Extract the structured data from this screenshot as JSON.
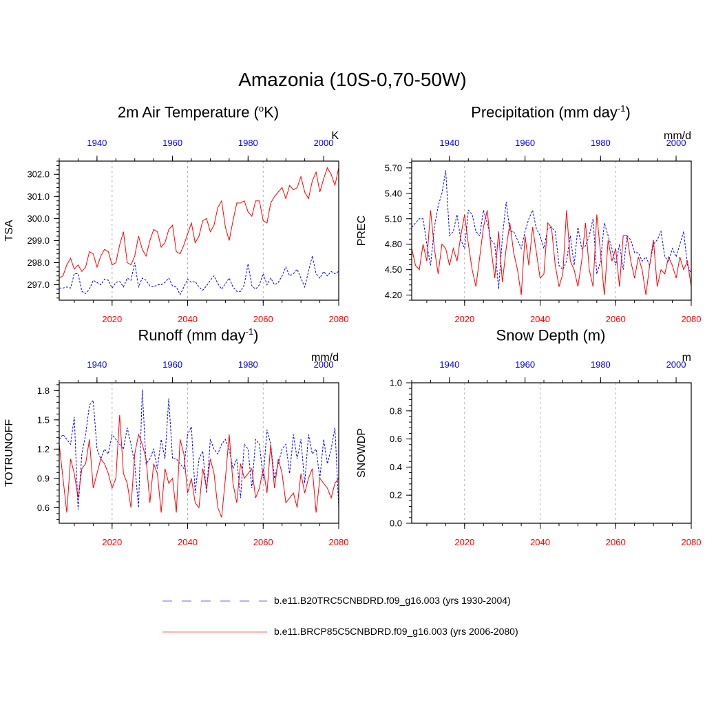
{
  "figure": {
    "title": "Amazonia (10S-0,70-50W)",
    "legend": [
      {
        "label": "b.e11.B20TRC5CNBDRD.f09_g16.003 (yrs 1930-2004)",
        "color": "#0000ff",
        "style": "dashed"
      },
      {
        "label": "b.e11.BRCP85C5CNBDRD.f09_g16.003 (yrs 2006-2080)",
        "color": "#ff0000",
        "style": "solid"
      }
    ],
    "colors": {
      "historical": "#0000ff",
      "future": "#ff0000",
      "grid": "#b0b0b0"
    }
  },
  "chart_data": [
    {
      "type": "line",
      "title_main": "2m Air Temperature (",
      "title_sup": "o",
      "title_tail": "K)",
      "ylabel": "TSA",
      "units": "K",
      "ylim": [
        296.3,
        302.6
      ],
      "yticks": [
        "297.0",
        "298.0",
        "299.0",
        "300.0",
        "301.0",
        "302.0"
      ],
      "bottom_axis": {
        "range": [
          2006,
          2080
        ],
        "ticks": [
          "2020",
          "2040",
          "2060",
          "2080"
        ]
      },
      "top_axis": {
        "range": [
          1930,
          2004
        ],
        "ticks": [
          "1940",
          "1960",
          "1980",
          "2000"
        ]
      },
      "series": [
        {
          "name": "b.e11.B20TRC5CNBDRD.f09_g16.003 (yrs 1930-2004)",
          "axis": "top",
          "start": 1930,
          "values": [
            296.85,
            296.85,
            296.9,
            296.85,
            297.5,
            297.5,
            296.7,
            296.6,
            296.8,
            297.2,
            297.1,
            297.0,
            297.25,
            297.2,
            296.85,
            297.1,
            297.15,
            296.9,
            297.3,
            297.2,
            298.0,
            296.9,
            297.3,
            297.2,
            296.95,
            296.9,
            297.0,
            297.0,
            297.1,
            297.3,
            296.95,
            296.9,
            296.55,
            296.9,
            297.25,
            297.1,
            297.15,
            296.9,
            296.75,
            296.95,
            297.2,
            297.4,
            297.05,
            296.8,
            297.05,
            297.3,
            296.9,
            296.7,
            296.7,
            297.0,
            297.95,
            296.95,
            296.8,
            297.0,
            297.5,
            297.0,
            297.3,
            297.0,
            297.1,
            297.4,
            297.8,
            297.4,
            297.5,
            297.7,
            297.3,
            296.9,
            297.6,
            298.3,
            297.5,
            297.3,
            297.6,
            297.4,
            297.6,
            297.5,
            297.6
          ]
        },
        {
          "name": "b.e11.BRCP85C5CNBDRD.f09_g16.003 (yrs 2006-2080)",
          "axis": "bottom",
          "start": 2006,
          "values": [
            297.3,
            297.4,
            297.9,
            298.2,
            297.7,
            297.9,
            297.6,
            297.8,
            298.5,
            298.4,
            297.8,
            298.3,
            298.6,
            298.5,
            297.9,
            298.0,
            298.8,
            299.4,
            298.0,
            297.9,
            298.3,
            299.2,
            298.6,
            298.3,
            299.0,
            299.5,
            299.4,
            298.7,
            298.9,
            299.5,
            299.7,
            298.5,
            298.4,
            298.8,
            299.3,
            299.8,
            298.9,
            299.2,
            299.9,
            300.0,
            299.4,
            299.7,
            300.5,
            300.8,
            299.6,
            299.0,
            299.9,
            300.7,
            300.7,
            300.8,
            300.3,
            300.1,
            300.8,
            300.8,
            299.9,
            299.8,
            300.7,
            301.0,
            301.2,
            301.4,
            300.9,
            301.5,
            301.3,
            301.4,
            301.9,
            301.2,
            300.9,
            301.7,
            302.1,
            301.2,
            301.8,
            302.3,
            302.0,
            301.5,
            302.3
          ]
        }
      ]
    },
    {
      "type": "line",
      "title_main": "Precipitation (mm day",
      "title_sup": "-1",
      "title_tail": ")",
      "ylabel": "PREC",
      "units": "mm/d",
      "ylim": [
        4.14,
        5.78
      ],
      "yticks": [
        "4.20",
        "4.50",
        "4.80",
        "5.10",
        "5.40",
        "5.70"
      ],
      "bottom_axis": {
        "range": [
          2006,
          2080
        ],
        "ticks": [
          "2020",
          "2040",
          "2060",
          "2080"
        ]
      },
      "top_axis": {
        "range": [
          1930,
          2004
        ],
        "ticks": [
          "1940",
          "1960",
          "1980",
          "2000"
        ]
      },
      "series": [
        {
          "name": "b.e11.B20TRC5CNBDRD.f09_g16.003 (yrs 1930-2004)",
          "axis": "top",
          "start": 1930,
          "values": [
            5.0,
            5.05,
            5.1,
            5.1,
            4.8,
            4.55,
            5.0,
            5.25,
            5.4,
            5.67,
            4.9,
            4.95,
            5.15,
            4.85,
            4.75,
            5.2,
            5.15,
            4.95,
            4.9,
            5.2,
            5.05,
            4.85,
            4.8,
            4.27,
            4.88,
            5.3,
            4.95,
            4.95,
            4.85,
            4.75,
            4.95,
            5.1,
            5.2,
            4.98,
            4.9,
            4.75,
            4.98,
            5.0,
            4.95,
            4.55,
            4.5,
            4.6,
            4.9,
            4.55,
            5.0,
            4.75,
            4.78,
            4.9,
            5.1,
            4.45,
            4.6,
            5.05,
            4.9,
            4.75,
            4.55,
            4.8,
            4.5,
            4.9,
            4.85,
            4.7,
            4.7,
            4.6,
            4.65,
            4.55,
            4.8,
            4.85,
            4.95,
            4.65,
            4.6,
            4.75,
            4.65,
            4.8,
            4.95,
            4.55,
            4.45
          ]
        },
        {
          "name": "b.e11.BRCP85C5CNBDRD.f09_g16.003 (yrs 2006-2080)",
          "axis": "bottom",
          "start": 2006,
          "values": [
            4.75,
            4.55,
            4.5,
            4.8,
            4.6,
            5.2,
            4.75,
            4.45,
            4.8,
            4.75,
            4.55,
            4.75,
            4.6,
            4.9,
            5.15,
            4.8,
            4.5,
            4.3,
            4.65,
            5.0,
            5.2,
            4.75,
            4.4,
            4.95,
            4.35,
            4.75,
            5.05,
            4.7,
            4.5,
            4.2,
            4.9,
            4.55,
            5.0,
            4.7,
            4.4,
            4.45,
            5.05,
            5.0,
            4.55,
            4.3,
            4.45,
            5.2,
            4.6,
            4.5,
            4.3,
            4.6,
            5.05,
            4.5,
            4.3,
            5.15,
            4.7,
            4.2,
            4.85,
            4.6,
            4.75,
            4.3,
            4.9,
            4.9,
            4.6,
            4.4,
            4.65,
            4.5,
            4.2,
            4.55,
            4.85,
            4.3,
            4.5,
            4.45,
            4.65,
            4.55,
            4.4,
            4.65,
            4.5,
            4.6,
            4.3
          ]
        }
      ]
    },
    {
      "type": "line",
      "title_main": "Runoff (mm day",
      "title_sup": "-1",
      "title_tail": ")",
      "ylabel": "TOTRUNOFF",
      "units": "mm/d",
      "ylim": [
        0.44,
        1.88
      ],
      "yticks": [
        "0.6",
        "0.9",
        "1.2",
        "1.5",
        "1.8"
      ],
      "bottom_axis": {
        "range": [
          2006,
          2080
        ],
        "ticks": [
          "2020",
          "2040",
          "2060",
          "2080"
        ]
      },
      "top_axis": {
        "range": [
          1930,
          2004
        ],
        "ticks": [
          "1940",
          "1960",
          "1980",
          "2000"
        ]
      },
      "series": [
        {
          "name": "b.e11.B20TRC5CNBDRD.f09_g16.003 (yrs 1930-2004)",
          "axis": "top",
          "start": 1930,
          "values": [
            1.3,
            1.35,
            1.3,
            1.25,
            1.53,
            0.58,
            1.15,
            1.35,
            1.65,
            1.7,
            1.2,
            1.1,
            1.2,
            1.15,
            1.35,
            1.3,
            1.25,
            1.2,
            1.42,
            1.25,
            1.05,
            0.6,
            1.81,
            1.05,
            1.1,
            1.2,
            1.0,
            1.3,
            1.1,
            1.72,
            1.1,
            1.1,
            1.05,
            1.0,
            1.35,
            1.43,
            0.75,
            1.1,
            1.18,
            0.75,
            1.3,
            1.2,
            1.15,
            1.25,
            1.3,
            1.2,
            1.0,
            1.1,
            0.7,
            1.25,
            1.2,
            0.8,
            1.3,
            1.25,
            0.9,
            1.4,
            1.25,
            0.9,
            1.05,
            1.2,
            1.25,
            0.95,
            1.35,
            1.1,
            1.3,
            0.85,
            1.35,
            1.15,
            1.2,
            0.9,
            1.3,
            1.05,
            1.2,
            1.42,
            0.6
          ]
        },
        {
          "name": "b.e11.BRCP85C5CNBDRD.f09_g16.003 (yrs 2006-2080)",
          "axis": "bottom",
          "start": 2006,
          "values": [
            1.25,
            0.9,
            0.55,
            1.1,
            0.95,
            0.7,
            1.0,
            1.05,
            1.3,
            0.8,
            0.95,
            1.1,
            1.05,
            0.95,
            0.8,
            0.9,
            1.55,
            0.95,
            0.85,
            0.6,
            1.15,
            1.35,
            1.25,
            1.1,
            0.65,
            1.05,
            0.95,
            0.55,
            1.0,
            0.85,
            0.9,
            0.55,
            1.3,
            1.15,
            0.75,
            0.9,
            0.65,
            0.6,
            1.0,
            0.8,
            1.1,
            0.95,
            0.6,
            0.5,
            0.9,
            1.35,
            0.85,
            0.65,
            1.05,
            0.9,
            0.95,
            1.0,
            0.7,
            0.8,
            1.0,
            0.75,
            1.25,
            0.8,
            1.1,
            0.95,
            0.65,
            0.7,
            0.75,
            0.6,
            0.95,
            0.75,
            0.9,
            1.0,
            0.55,
            0.9,
            0.85,
            0.8,
            0.7,
            0.85,
            0.9
          ]
        }
      ]
    },
    {
      "type": "line",
      "title_main": "Snow Depth (m)",
      "title_sup": "",
      "title_tail": "",
      "ylabel": "SNOWDP",
      "units": "m",
      "ylim": [
        0.0,
        1.0
      ],
      "yticks": [
        "0.0",
        "0.2",
        "0.4",
        "0.6",
        "0.8",
        "1.0"
      ],
      "bottom_axis": {
        "range": [
          2006,
          2080
        ],
        "ticks": [
          "2020",
          "2040",
          "2060",
          "2080"
        ]
      },
      "top_axis": {
        "range": [
          1930,
          2004
        ],
        "ticks": [
          "1940",
          "1960",
          "1980",
          "2000"
        ]
      },
      "series": []
    }
  ]
}
